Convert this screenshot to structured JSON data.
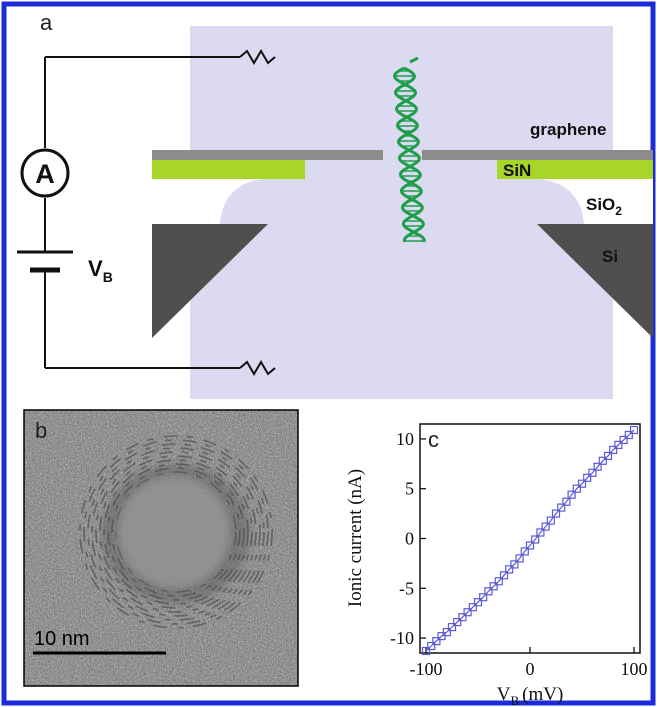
{
  "figure": {
    "border_color": "#1b2bd9",
    "panel_a": {
      "label": "a",
      "ammeter_symbol": "A",
      "voltage_label": "V",
      "voltage_subscript": "B",
      "materials": {
        "graphene": "graphene",
        "sin": "SiN",
        "sio2": "SiO",
        "sio2_subscript": "2",
        "si": "Si"
      },
      "colors": {
        "chamber": "#dcdaf0",
        "graphene": "#8c8c8c",
        "sin": "#a8d52a",
        "si": "#4f4f4f",
        "dna": "#1f9e4a"
      }
    },
    "panel_b": {
      "label": "b",
      "scale_bar_label": "10 nm"
    },
    "panel_c": {
      "label": "c"
    }
  },
  "chart_data": {
    "type": "scatter",
    "xlabel": "V",
    "xlabel_subscript": "B",
    "xlabel_unit": "(mV)",
    "ylabel": "Ionic current (nA)",
    "xlim": [
      -100,
      100
    ],
    "ylim": [
      -11.5,
      11.5
    ],
    "x_ticks": [
      -100,
      0,
      100
    ],
    "x_tick_labels": [
      "-100",
      "0",
      "100"
    ],
    "y_ticks": [
      -10,
      -5,
      0,
      5,
      10
    ],
    "y_tick_labels": [
      "-10",
      "-5",
      "0",
      "5",
      "10"
    ],
    "marker_color": "#5b5bd6",
    "grid": false,
    "series": [
      {
        "x": [
          -100,
          -95,
          -90,
          -85,
          -80,
          -75,
          -70,
          -65,
          -60,
          -55,
          -50,
          -45,
          -40,
          -35,
          -30,
          -25,
          -20,
          -15,
          -10,
          -5,
          0,
          5,
          10,
          15,
          20,
          25,
          30,
          35,
          40,
          45,
          50,
          55,
          60,
          65,
          70,
          75,
          80,
          85,
          90,
          95,
          100
        ],
        "y": [
          -11.3,
          -10.8,
          -10.3,
          -9.8,
          -9.4,
          -8.9,
          -8.4,
          -7.9,
          -7.4,
          -6.9,
          -6.4,
          -5.9,
          -5.3,
          -4.8,
          -4.3,
          -3.7,
          -3.1,
          -2.6,
          -2.0,
          -1.3,
          -0.7,
          -0.1,
          0.6,
          1.2,
          1.8,
          2.5,
          3.1,
          3.7,
          4.4,
          5.0,
          5.5,
          6.1,
          6.6,
          7.2,
          7.8,
          8.3,
          8.9,
          9.4,
          9.9,
          10.4,
          10.9
        ]
      }
    ]
  }
}
